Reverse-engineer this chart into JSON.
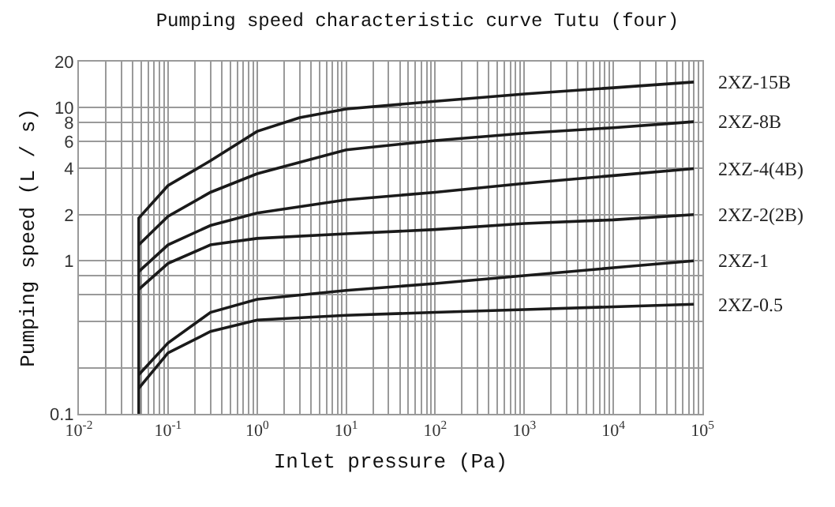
{
  "chart_data": {
    "type": "line",
    "title": "Pumping speed characteristic curve Tutu (four)",
    "xlabel": "Inlet pressure (Pa)",
    "ylabel": "Pumping speed (L / s)",
    "log": "xy",
    "grid": true,
    "legend": false,
    "xlim": [
      0.01,
      100000
    ],
    "ylim": [
      0.1,
      20
    ],
    "xticks": [
      {
        "value": 0.01,
        "label": "10$^{-2}$"
      },
      {
        "value": 0.02,
        "label": null
      },
      {
        "value": 0.03,
        "label": null
      },
      {
        "value": 0.04,
        "label": null
      },
      {
        "value": 0.05,
        "label": null
      },
      {
        "value": 0.06,
        "label": null
      },
      {
        "value": 0.07,
        "label": null
      },
      {
        "value": 0.08,
        "label": null
      },
      {
        "value": 0.09,
        "label": null
      },
      {
        "value": 0.1,
        "label": "10$^{-1}$"
      },
      {
        "value": 0.2,
        "label": null
      },
      {
        "value": 0.3,
        "label": null
      },
      {
        "value": 0.4,
        "label": null
      },
      {
        "value": 0.5,
        "label": null
      },
      {
        "value": 0.6,
        "label": null
      },
      {
        "value": 0.7,
        "label": null
      },
      {
        "value": 0.8,
        "label": null
      },
      {
        "value": 0.9,
        "label": null
      },
      {
        "value": 1,
        "label": "10$^{0}$"
      },
      {
        "value": 2,
        "label": null
      },
      {
        "value": 3,
        "label": null
      },
      {
        "value": 4,
        "label": null
      },
      {
        "value": 5,
        "label": null
      },
      {
        "value": 6,
        "label": null
      },
      {
        "value": 7,
        "label": null
      },
      {
        "value": 8,
        "label": null
      },
      {
        "value": 9,
        "label": null
      },
      {
        "value": 10,
        "label": "10$^{1}$"
      },
      {
        "value": 20,
        "label": null
      },
      {
        "value": 30,
        "label": null
      },
      {
        "value": 40,
        "label": null
      },
      {
        "value": 50,
        "label": null
      },
      {
        "value": 60,
        "label": null
      },
      {
        "value": 70,
        "label": null
      },
      {
        "value": 80,
        "label": null
      },
      {
        "value": 90,
        "label": null
      },
      {
        "value": 100,
        "label": "10$^{2}$"
      },
      {
        "value": 200,
        "label": null
      },
      {
        "value": 300,
        "label": null
      },
      {
        "value": 400,
        "label": null
      },
      {
        "value": 500,
        "label": null
      },
      {
        "value": 600,
        "label": null
      },
      {
        "value": 700,
        "label": null
      },
      {
        "value": 800,
        "label": null
      },
      {
        "value": 900,
        "label": null
      },
      {
        "value": 1000,
        "label": "10$^{3}$"
      },
      {
        "value": 2000,
        "label": null
      },
      {
        "value": 3000,
        "label": null
      },
      {
        "value": 4000,
        "label": null
      },
      {
        "value": 5000,
        "label": null
      },
      {
        "value": 6000,
        "label": null
      },
      {
        "value": 7000,
        "label": null
      },
      {
        "value": 8000,
        "label": null
      },
      {
        "value": 9000,
        "label": null
      },
      {
        "value": 10000,
        "label": "10$^{4}$"
      },
      {
        "value": 20000,
        "label": null
      },
      {
        "value": 30000,
        "label": null
      },
      {
        "value": 40000,
        "label": null
      },
      {
        "value": 50000,
        "label": null
      },
      {
        "value": 60000,
        "label": null
      },
      {
        "value": 70000,
        "label": null
      },
      {
        "value": 80000,
        "label": null
      },
      {
        "value": 90000,
        "label": null
      },
      {
        "value": 100000,
        "label": "10$^{5}$"
      }
    ],
    "yticks": [
      0.1,
      {
        "value": 0.2,
        "label": null
      },
      {
        "value": 0.4,
        "label": null
      },
      {
        "value": 0.6,
        "label": null
      },
      {
        "value": 0.8,
        "label": null
      },
      1,
      2,
      4,
      6,
      8,
      10,
      20
    ],
    "series": [
      {
        "name": "2XZ-15B",
        "color": "#1a1a1a",
        "x": [
          0.047,
          0.047,
          0.1,
          0.3,
          1,
          3,
          10,
          100,
          1000,
          10000,
          80000
        ],
        "values": [
          0.1,
          1.9,
          3.1,
          4.5,
          7.0,
          8.6,
          9.8,
          11,
          12.3,
          13.5,
          14.7
        ]
      },
      {
        "name": "2XZ-8B",
        "color": "#1a1a1a",
        "x": [
          0.047,
          0.1,
          0.3,
          1,
          10,
          100,
          1000,
          10000,
          80000
        ],
        "values": [
          1.27,
          1.95,
          2.8,
          3.7,
          5.3,
          6.1,
          6.8,
          7.4,
          8.1
        ]
      },
      {
        "name": "2XZ-4(4B)",
        "color": "#1a1a1a",
        "x": [
          0.047,
          0.1,
          0.3,
          1,
          10,
          100,
          1000,
          10000,
          80000
        ],
        "values": [
          0.85,
          1.27,
          1.7,
          2.05,
          2.5,
          2.8,
          3.2,
          3.6,
          4.0
        ]
      },
      {
        "name": "2XZ-2(2B)",
        "color": "#1a1a1a",
        "x": [
          0.047,
          0.1,
          0.3,
          1,
          10,
          100,
          1000,
          10000,
          80000
        ],
        "values": [
          0.65,
          0.96,
          1.27,
          1.4,
          1.5,
          1.6,
          1.75,
          1.85,
          2.0
        ]
      },
      {
        "name": "2XZ-1",
        "color": "#1a1a1a",
        "x": [
          0.047,
          0.1,
          0.3,
          1,
          10,
          100,
          1000,
          10000,
          80000
        ],
        "values": [
          0.18,
          0.29,
          0.46,
          0.56,
          0.64,
          0.71,
          0.8,
          0.9,
          1.0
        ]
      },
      {
        "name": "2XZ-0.5",
        "color": "#1a1a1a",
        "x": [
          0.047,
          0.1,
          0.3,
          1,
          10,
          100,
          1000,
          10000,
          80000
        ],
        "values": [
          0.147,
          0.25,
          0.345,
          0.41,
          0.44,
          0.46,
          0.48,
          0.5,
          0.52
        ]
      }
    ]
  }
}
